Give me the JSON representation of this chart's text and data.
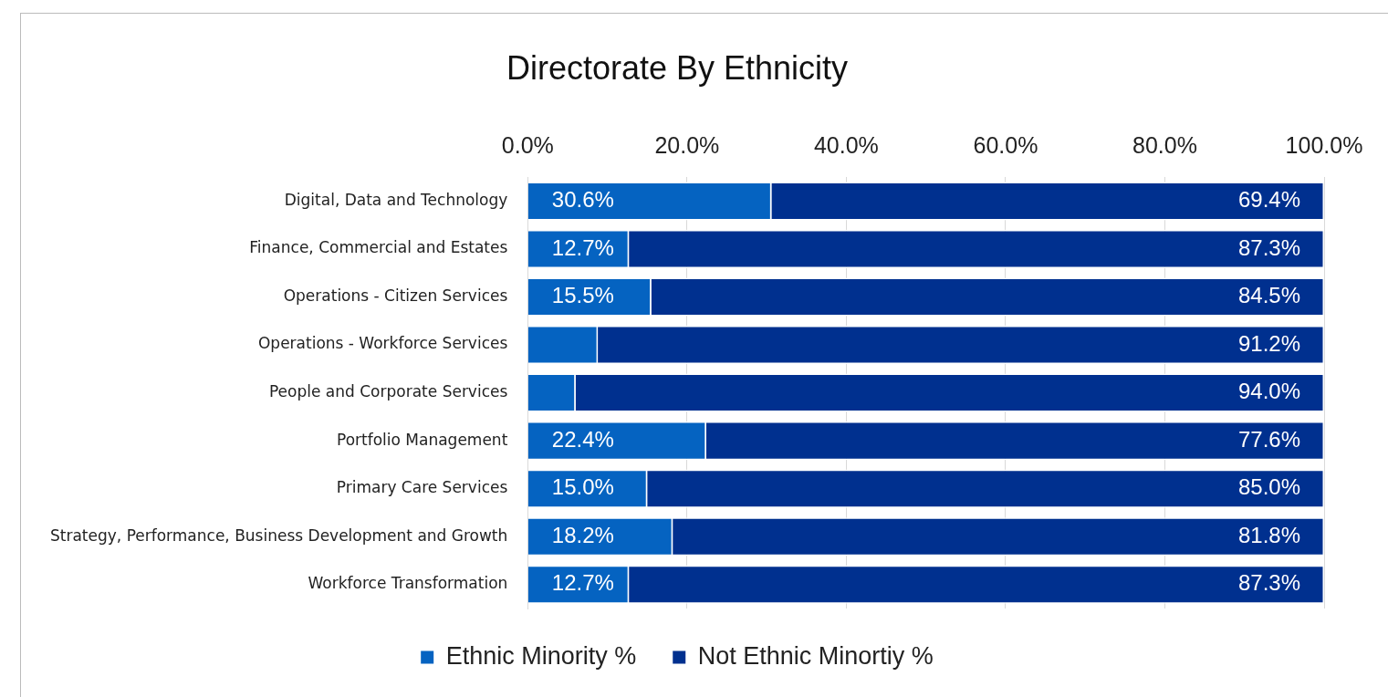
{
  "chart_data": {
    "type": "bar",
    "orientation": "horizontal",
    "stacked": true,
    "title": "Directorate By Ethnicity",
    "categories": [
      "Digital, Data and Technology",
      "Finance, Commercial and Estates",
      "Operations - Citizen Services",
      "Operations - Workforce Services",
      "People and Corporate Services",
      "Portfolio Management",
      "Primary Care Services",
      "Strategy, Performance, Business Development and Growth",
      "Workforce Transformation"
    ],
    "series": [
      {
        "name": "Ethnic Minority %",
        "color": "#0563c1",
        "values": [
          30.6,
          12.7,
          15.5,
          8.8,
          6.0,
          22.4,
          15.0,
          18.2,
          12.7
        ],
        "value_labels": [
          "30.6%",
          "12.7%",
          "15.5%",
          null,
          null,
          "22.4%",
          "15.0%",
          "18.2%",
          "12.7%"
        ]
      },
      {
        "name": "Not Ethnic Minortiy %",
        "color": "#00308f",
        "values": [
          69.4,
          87.3,
          84.5,
          91.2,
          94.0,
          77.6,
          85.0,
          81.8,
          87.3
        ],
        "value_labels": [
          "69.4%",
          "87.3%",
          "84.5%",
          "91.2%",
          "94.0%",
          "77.6%",
          "85.0%",
          "81.8%",
          "87.3%"
        ]
      }
    ],
    "xlim": [
      0,
      100
    ],
    "xticks": [
      {
        "value": 0,
        "label": "0.0%"
      },
      {
        "value": 20,
        "label": "20.0%"
      },
      {
        "value": 40,
        "label": "40.0%"
      },
      {
        "value": 60,
        "label": "60.0%"
      },
      {
        "value": 80,
        "label": "80.0%"
      },
      {
        "value": 100,
        "label": "100.0%"
      }
    ],
    "grid": "x",
    "legend": "bottom"
  }
}
